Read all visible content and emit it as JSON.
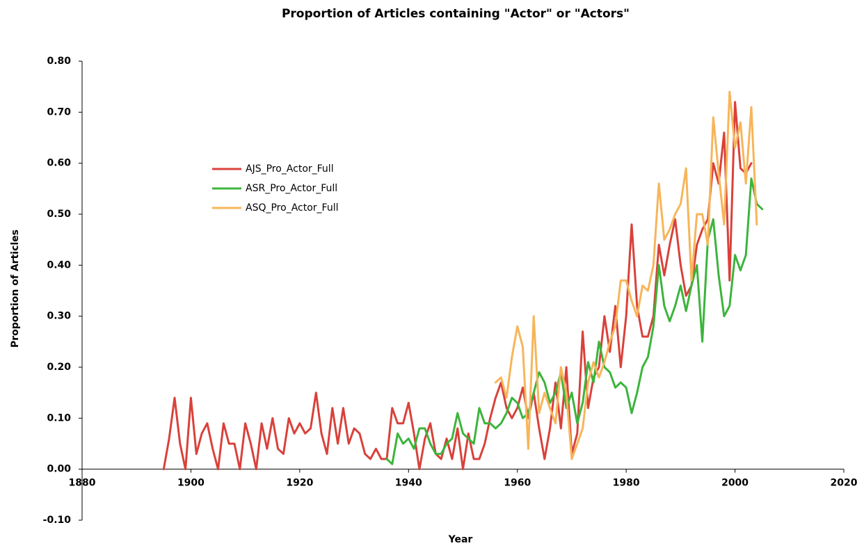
{
  "chart_data": {
    "type": "line",
    "title": "Proportion of Articles containing \"Actor\" or \"Actors\"",
    "xlabel": "Year",
    "ylabel": "Proportion of Articles",
    "x": [
      1895,
      1896,
      1897,
      1898,
      1899,
      1900,
      1901,
      1902,
      1903,
      1904,
      1905,
      1906,
      1907,
      1908,
      1909,
      1910,
      1911,
      1912,
      1913,
      1914,
      1915,
      1916,
      1917,
      1918,
      1919,
      1920,
      1921,
      1922,
      1923,
      1924,
      1925,
      1926,
      1927,
      1928,
      1929,
      1930,
      1931,
      1932,
      1933,
      1934,
      1935,
      1936,
      1937,
      1938,
      1939,
      1940,
      1941,
      1942,
      1943,
      1944,
      1945,
      1946,
      1947,
      1948,
      1949,
      1950,
      1951,
      1952,
      1953,
      1954,
      1955,
      1956,
      1957,
      1958,
      1959,
      1960,
      1961,
      1962,
      1963,
      1964,
      1965,
      1966,
      1967,
      1968,
      1969,
      1970,
      1971,
      1972,
      1973,
      1974,
      1975,
      1976,
      1977,
      1978,
      1979,
      1980,
      1981,
      1982,
      1983,
      1984,
      1985,
      1986,
      1987,
      1988,
      1989,
      1990,
      1991,
      1992,
      1993,
      1994,
      1995,
      1996,
      1997,
      1998,
      1999,
      2000,
      2001,
      2002,
      2003,
      2004,
      2005
    ],
    "series": [
      {
        "name": "AJS_Pro_Actor_Full",
        "color": "#d9413a",
        "values": [
          0.0,
          0.06,
          0.14,
          0.05,
          0.0,
          0.14,
          0.03,
          0.07,
          0.09,
          0.04,
          0.0,
          0.09,
          0.05,
          0.05,
          0.0,
          0.09,
          0.05,
          0.0,
          0.09,
          0.04,
          0.1,
          0.04,
          0.03,
          0.1,
          0.07,
          0.09,
          0.07,
          0.08,
          0.15,
          0.07,
          0.03,
          0.12,
          0.05,
          0.12,
          0.05,
          0.08,
          0.07,
          0.03,
          0.02,
          0.04,
          0.02,
          0.02,
          0.12,
          0.09,
          0.09,
          0.13,
          0.07,
          0.0,
          0.06,
          0.09,
          0.03,
          0.02,
          0.06,
          0.02,
          0.08,
          0.0,
          0.07,
          0.02,
          0.02,
          0.05,
          0.1,
          0.14,
          0.17,
          0.12,
          0.1,
          0.12,
          0.16,
          0.1,
          0.15,
          0.08,
          0.02,
          0.08,
          0.17,
          0.08,
          0.2,
          0.03,
          0.07,
          0.27,
          0.12,
          0.18,
          0.2,
          0.3,
          0.23,
          0.32,
          0.2,
          0.3,
          0.48,
          0.32,
          0.26,
          0.26,
          0.3,
          0.44,
          0.38,
          0.44,
          0.49,
          0.4,
          0.34,
          0.36,
          0.44,
          0.47,
          0.49,
          0.6,
          0.56,
          0.66,
          0.37,
          0.72,
          0.59,
          0.58,
          0.6,
          null,
          null
        ]
      },
      {
        "name": "ASR_Pro_Actor_Full",
        "color": "#3cb43c",
        "values": [
          null,
          null,
          null,
          null,
          null,
          null,
          null,
          null,
          null,
          null,
          null,
          null,
          null,
          null,
          null,
          null,
          null,
          null,
          null,
          null,
          null,
          null,
          null,
          null,
          null,
          null,
          null,
          null,
          null,
          null,
          null,
          null,
          null,
          null,
          null,
          null,
          null,
          null,
          null,
          null,
          null,
          0.02,
          0.01,
          0.07,
          0.05,
          0.06,
          0.04,
          0.08,
          0.08,
          0.05,
          0.03,
          0.03,
          0.05,
          0.06,
          0.11,
          0.07,
          0.06,
          0.05,
          0.12,
          0.09,
          0.09,
          0.08,
          0.09,
          0.11,
          0.14,
          0.13,
          0.1,
          0.11,
          0.15,
          0.19,
          0.17,
          0.13,
          0.15,
          0.19,
          0.12,
          0.15,
          0.09,
          0.13,
          0.21,
          0.17,
          0.25,
          0.2,
          0.19,
          0.16,
          0.17,
          0.16,
          0.11,
          0.15,
          0.2,
          0.22,
          0.28,
          0.4,
          0.32,
          0.29,
          0.32,
          0.36,
          0.31,
          0.36,
          0.4,
          0.25,
          0.45,
          0.49,
          0.38,
          0.3,
          0.32,
          0.42,
          0.39,
          0.42,
          0.57,
          0.52,
          0.51
        ]
      },
      {
        "name": "ASQ_Pro_Actor_Full",
        "color": "#f7b55a",
        "values": [
          null,
          null,
          null,
          null,
          null,
          null,
          null,
          null,
          null,
          null,
          null,
          null,
          null,
          null,
          null,
          null,
          null,
          null,
          null,
          null,
          null,
          null,
          null,
          null,
          null,
          null,
          null,
          null,
          null,
          null,
          null,
          null,
          null,
          null,
          null,
          null,
          null,
          null,
          null,
          null,
          null,
          null,
          null,
          null,
          null,
          null,
          null,
          null,
          null,
          null,
          null,
          null,
          null,
          null,
          null,
          null,
          null,
          null,
          null,
          null,
          null,
          0.17,
          0.18,
          0.14,
          0.22,
          0.28,
          0.24,
          0.04,
          0.3,
          0.11,
          0.15,
          0.12,
          0.09,
          0.2,
          0.15,
          0.02,
          0.05,
          0.08,
          0.17,
          0.21,
          0.18,
          0.21,
          0.25,
          0.28,
          0.37,
          0.37,
          0.33,
          0.3,
          0.36,
          0.35,
          0.4,
          0.56,
          0.45,
          0.47,
          0.5,
          0.52,
          0.59,
          0.37,
          0.5,
          0.5,
          0.44,
          0.69,
          0.58,
          0.48,
          0.74,
          0.63,
          0.68,
          0.56,
          0.71,
          0.48,
          null
        ]
      }
    ],
    "xlim": [
      1880,
      2020
    ],
    "xticks": [
      1880,
      1900,
      1920,
      1940,
      1960,
      1980,
      2000,
      2020
    ],
    "ylim": [
      -0.1,
      0.8
    ],
    "yticks": [
      {
        "value": -0.1,
        "label": "-0.10"
      },
      {
        "value": 0,
        "label": "0.00"
      },
      {
        "value": 0.1,
        "label": "0.10"
      },
      {
        "value": 0.2,
        "label": "0.20"
      },
      {
        "value": 0.3,
        "label": "0.30"
      },
      {
        "value": 0.4,
        "label": "0.40"
      },
      {
        "value": 0.5,
        "label": "0.50"
      },
      {
        "value": 0.6,
        "label": "0.60"
      },
      {
        "value": 0.7,
        "label": "0.70"
      },
      {
        "value": 0.8,
        "label": "0.80"
      }
    ],
    "grid": false,
    "legend": "upper left"
  }
}
